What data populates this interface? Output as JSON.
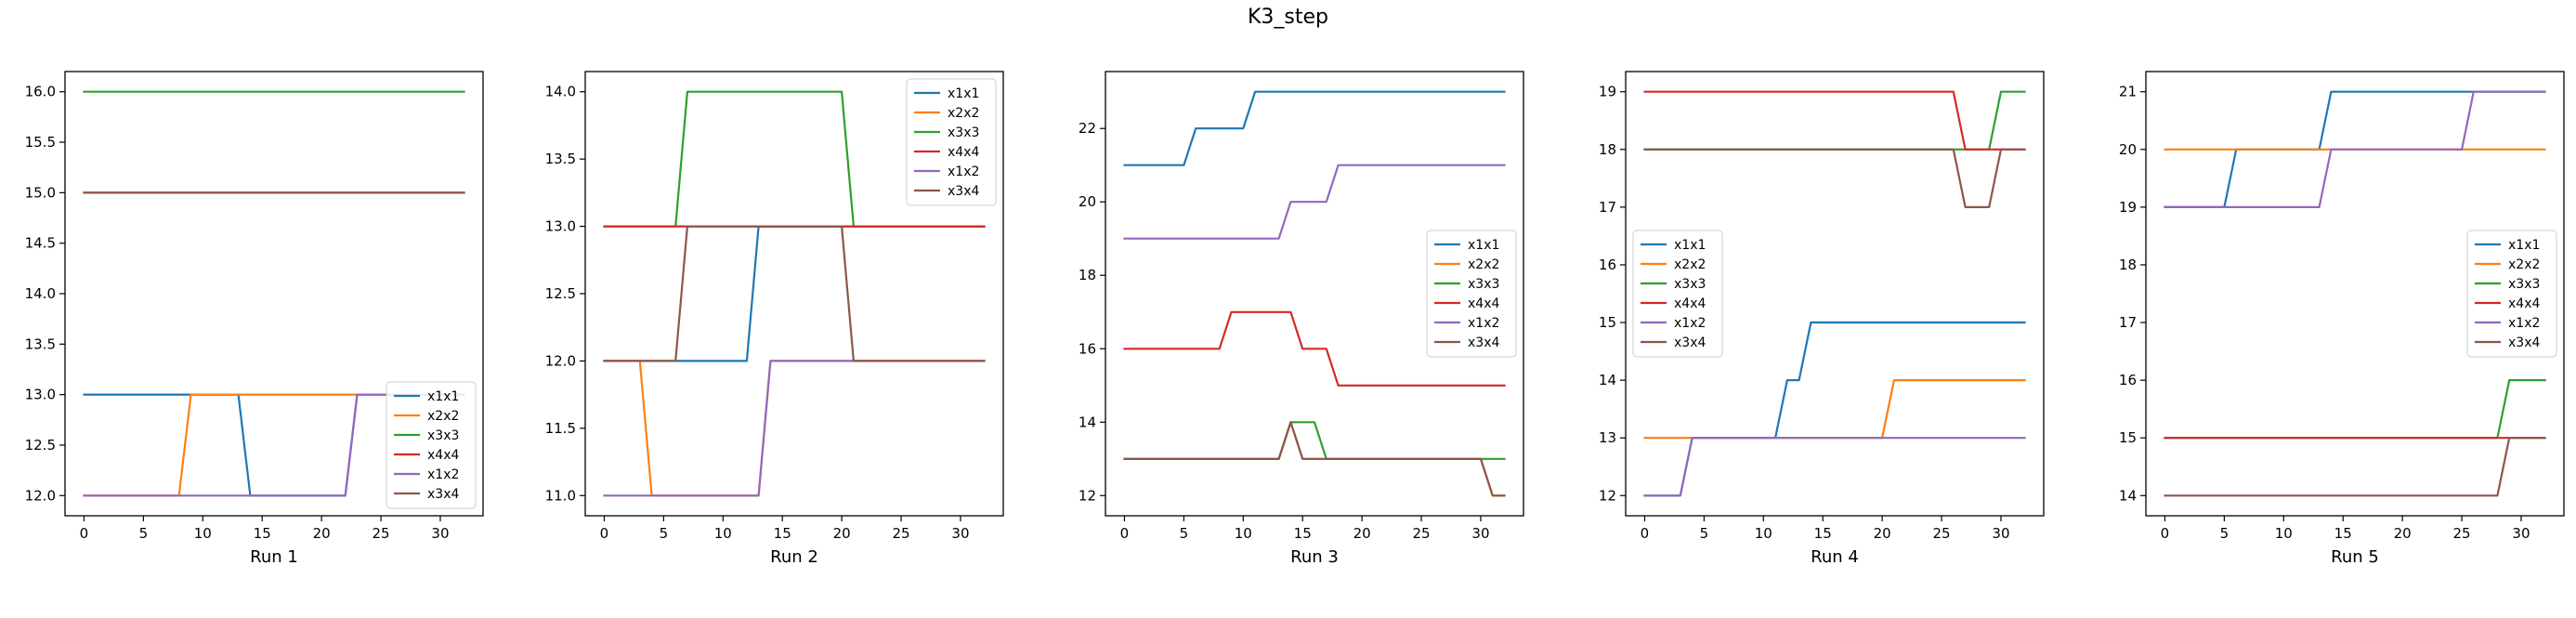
{
  "figure": {
    "title": "K3_step"
  },
  "colors": {
    "x1x1": "#1f77b4",
    "x2x2": "#ff7f0e",
    "x3x3": "#2ca02c",
    "x4x4": "#d62728",
    "x1x2": "#9467bd",
    "x3x4": "#8c564b"
  },
  "chart_data": [
    {
      "type": "line",
      "title": "",
      "xlabel": "Run 1",
      "ylabel": "",
      "xlim": [
        -1.6,
        33.6
      ],
      "ylim": [
        11.8,
        16.2
      ],
      "xticks": [
        0,
        5,
        10,
        15,
        20,
        25,
        30
      ],
      "yticks": [
        12.0,
        12.5,
        13.0,
        13.5,
        14.0,
        14.5,
        15.0,
        15.5,
        16.0
      ],
      "ytick_format": 1,
      "legend": "lower right",
      "series": [
        {
          "name": "x1x1",
          "points": [
            [
              0,
              13
            ],
            [
              13,
              13
            ],
            [
              14,
              12
            ],
            [
              22,
              12
            ],
            [
              23,
              13
            ],
            [
              32,
              13
            ]
          ]
        },
        {
          "name": "x2x2",
          "points": [
            [
              0,
              12
            ],
            [
              8,
              12
            ],
            [
              9,
              13
            ],
            [
              32,
              13
            ]
          ]
        },
        {
          "name": "x3x3",
          "points": [
            [
              0,
              16
            ],
            [
              32,
              16
            ]
          ]
        },
        {
          "name": "x4x4",
          "points": [
            [
              0,
              15
            ],
            [
              32,
              15
            ]
          ]
        },
        {
          "name": "x1x2",
          "points": [
            [
              0,
              12
            ],
            [
              22,
              12
            ],
            [
              23,
              13
            ],
            [
              32,
              13
            ]
          ]
        },
        {
          "name": "x3x4",
          "points": [
            [
              0,
              15
            ],
            [
              32,
              15
            ]
          ]
        }
      ]
    },
    {
      "type": "line",
      "title": "",
      "xlabel": "Run 2",
      "ylabel": "",
      "xlim": [
        -1.6,
        33.6
      ],
      "ylim": [
        10.85,
        14.15
      ],
      "xticks": [
        0,
        5,
        10,
        15,
        20,
        25,
        30
      ],
      "yticks": [
        11.0,
        11.5,
        12.0,
        12.5,
        13.0,
        13.5,
        14.0
      ],
      "ytick_format": 1,
      "legend": "upper right",
      "series": [
        {
          "name": "x1x1",
          "points": [
            [
              0,
              12
            ],
            [
              12,
              12
            ],
            [
              13,
              13
            ],
            [
              32,
              13
            ]
          ]
        },
        {
          "name": "x2x2",
          "points": [
            [
              0,
              12
            ],
            [
              3,
              12
            ],
            [
              4,
              11
            ],
            [
              13,
              11
            ],
            [
              14,
              12
            ],
            [
              32,
              12
            ]
          ]
        },
        {
          "name": "x3x3",
          "points": [
            [
              0,
              13
            ],
            [
              6,
              13
            ],
            [
              7,
              14
            ],
            [
              20,
              14
            ],
            [
              21,
              13
            ],
            [
              32,
              13
            ]
          ]
        },
        {
          "name": "x4x4",
          "points": [
            [
              0,
              13
            ],
            [
              32,
              13
            ]
          ]
        },
        {
          "name": "x1x2",
          "points": [
            [
              0,
              11
            ],
            [
              13,
              11
            ],
            [
              14,
              12
            ],
            [
              32,
              12
            ]
          ]
        },
        {
          "name": "x3x4",
          "points": [
            [
              0,
              12
            ],
            [
              6,
              12
            ],
            [
              7,
              13
            ],
            [
              20,
              13
            ],
            [
              21,
              12
            ],
            [
              32,
              12
            ]
          ]
        }
      ]
    },
    {
      "type": "line",
      "title": "",
      "xlabel": "Run 3",
      "ylabel": "",
      "xlim": [
        -1.6,
        33.6
      ],
      "ylim": [
        11.45,
        23.55
      ],
      "xticks": [
        0,
        5,
        10,
        15,
        20,
        25,
        30
      ],
      "yticks": [
        12,
        14,
        16,
        18,
        20,
        22
      ],
      "ytick_format": 0,
      "legend": "center right",
      "series": [
        {
          "name": "x1x1",
          "points": [
            [
              0,
              21
            ],
            [
              5,
              21
            ],
            [
              6,
              22
            ],
            [
              10,
              22
            ],
            [
              11,
              23
            ],
            [
              32,
              23
            ]
          ]
        },
        {
          "name": "x2x2",
          "points": [
            [
              0,
              13
            ],
            [
              13,
              13
            ],
            [
              14,
              14
            ],
            [
              15,
              13
            ],
            [
              30,
              13
            ],
            [
              31,
              12
            ],
            [
              32,
              12
            ]
          ]
        },
        {
          "name": "x3x3",
          "points": [
            [
              0,
              13
            ],
            [
              13,
              13
            ],
            [
              14,
              14
            ],
            [
              16,
              14
            ],
            [
              17,
              13
            ],
            [
              32,
              13
            ]
          ]
        },
        {
          "name": "x4x4",
          "points": [
            [
              0,
              16
            ],
            [
              8,
              16
            ],
            [
              9,
              17
            ],
            [
              14,
              17
            ],
            [
              15,
              16
            ],
            [
              17,
              16
            ],
            [
              18,
              15
            ],
            [
              32,
              15
            ]
          ]
        },
        {
          "name": "x1x2",
          "points": [
            [
              0,
              19
            ],
            [
              13,
              19
            ],
            [
              14,
              20
            ],
            [
              17,
              20
            ],
            [
              18,
              21
            ],
            [
              32,
              21
            ]
          ]
        },
        {
          "name": "x3x4",
          "points": [
            [
              0,
              13
            ],
            [
              13,
              13
            ],
            [
              14,
              14
            ],
            [
              15,
              13
            ],
            [
              30,
              13
            ],
            [
              31,
              12
            ],
            [
              32,
              12
            ]
          ]
        }
      ]
    },
    {
      "type": "line",
      "title": "",
      "xlabel": "Run 4",
      "ylabel": "",
      "xlim": [
        -1.6,
        33.6
      ],
      "ylim": [
        11.65,
        19.35
      ],
      "xticks": [
        0,
        5,
        10,
        15,
        20,
        25,
        30
      ],
      "yticks": [
        12,
        13,
        14,
        15,
        16,
        17,
        18,
        19
      ],
      "ytick_format": 0,
      "legend": "center left",
      "series": [
        {
          "name": "x1x1",
          "points": [
            [
              0,
              12
            ],
            [
              3,
              12
            ],
            [
              4,
              13
            ],
            [
              11,
              13
            ],
            [
              12,
              14
            ],
            [
              13,
              14
            ],
            [
              14,
              15
            ],
            [
              32,
              15
            ]
          ]
        },
        {
          "name": "x2x2",
          "points": [
            [
              0,
              13
            ],
            [
              20,
              13
            ],
            [
              21,
              14
            ],
            [
              32,
              14
            ]
          ]
        },
        {
          "name": "x3x3",
          "points": [
            [
              0,
              18
            ],
            [
              29,
              18
            ],
            [
              30,
              19
            ],
            [
              32,
              19
            ]
          ]
        },
        {
          "name": "x4x4",
          "points": [
            [
              0,
              19
            ],
            [
              26,
              19
            ],
            [
              27,
              18
            ],
            [
              32,
              18
            ]
          ]
        },
        {
          "name": "x1x2",
          "points": [
            [
              0,
              12
            ],
            [
              3,
              12
            ],
            [
              4,
              13
            ],
            [
              32,
              13
            ]
          ]
        },
        {
          "name": "x3x4",
          "points": [
            [
              0,
              18
            ],
            [
              26,
              18
            ],
            [
              27,
              17
            ],
            [
              29,
              17
            ],
            [
              30,
              18
            ],
            [
              32,
              18
            ]
          ]
        }
      ]
    },
    {
      "type": "line",
      "title": "",
      "xlabel": "Run 5",
      "ylabel": "",
      "xlim": [
        -1.6,
        33.6
      ],
      "ylim": [
        13.65,
        21.35
      ],
      "xticks": [
        0,
        5,
        10,
        15,
        20,
        25,
        30
      ],
      "yticks": [
        14,
        15,
        16,
        17,
        18,
        19,
        20,
        21
      ],
      "ytick_format": 0,
      "legend": "center right",
      "series": [
        {
          "name": "x1x1",
          "points": [
            [
              0,
              19
            ],
            [
              5,
              19
            ],
            [
              6,
              20
            ],
            [
              13,
              20
            ],
            [
              14,
              21
            ],
            [
              32,
              21
            ]
          ]
        },
        {
          "name": "x2x2",
          "points": [
            [
              0,
              20
            ],
            [
              32,
              20
            ]
          ]
        },
        {
          "name": "x3x3",
          "points": [
            [
              0,
              15
            ],
            [
              28,
              15
            ],
            [
              29,
              16
            ],
            [
              32,
              16
            ]
          ]
        },
        {
          "name": "x4x4",
          "points": [
            [
              0,
              15
            ],
            [
              32,
              15
            ]
          ]
        },
        {
          "name": "x1x2",
          "points": [
            [
              0,
              19
            ],
            [
              13,
              19
            ],
            [
              14,
              20
            ],
            [
              25,
              20
            ],
            [
              26,
              21
            ],
            [
              32,
              21
            ]
          ]
        },
        {
          "name": "x3x4",
          "points": [
            [
              0,
              14
            ],
            [
              28,
              14
            ],
            [
              29,
              15
            ],
            [
              32,
              15
            ]
          ]
        }
      ]
    }
  ]
}
